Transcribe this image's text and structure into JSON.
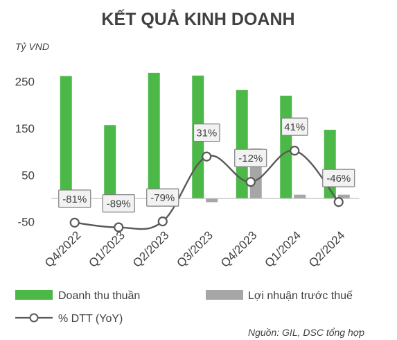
{
  "chart_data": {
    "type": "bar",
    "title": "KẾT QUẢ KINH DOANH",
    "unit_label": "Tỷ VND",
    "categories": [
      "Q4/2022",
      "Q1/2023",
      "Q2/2023",
      "Q3/2023",
      "Q4/2023",
      "Q1/2024",
      "Q2/2024"
    ],
    "y_ticks": [
      "250",
      "150",
      "50",
      "-50"
    ],
    "ylim": [
      -50,
      250
    ],
    "grid": false,
    "series": [
      {
        "name": "Doanh thu thuần",
        "type": "bar",
        "color": "#4cb848",
        "values": [
          262,
          157,
          269,
          263,
          232,
          220,
          147
        ]
      },
      {
        "name": "Lợi nhuận trước thuế",
        "type": "bar",
        "color": "#a6a6a6",
        "values": [
          13,
          -15,
          10,
          -8,
          107,
          8,
          8
        ]
      },
      {
        "name": "% DTT (YoY)",
        "type": "line",
        "color": "#595959",
        "axis": "secondary",
        "values": [
          -81,
          -89,
          -79,
          31,
          -12,
          41,
          -46
        ],
        "labels": [
          "-81%",
          "-89%",
          "-79%",
          "31%",
          "-12%",
          "41%",
          "-46%"
        ]
      }
    ],
    "legend_position": "bottom",
    "source": "Nguồn: GIL, DSC tổng hợp"
  }
}
